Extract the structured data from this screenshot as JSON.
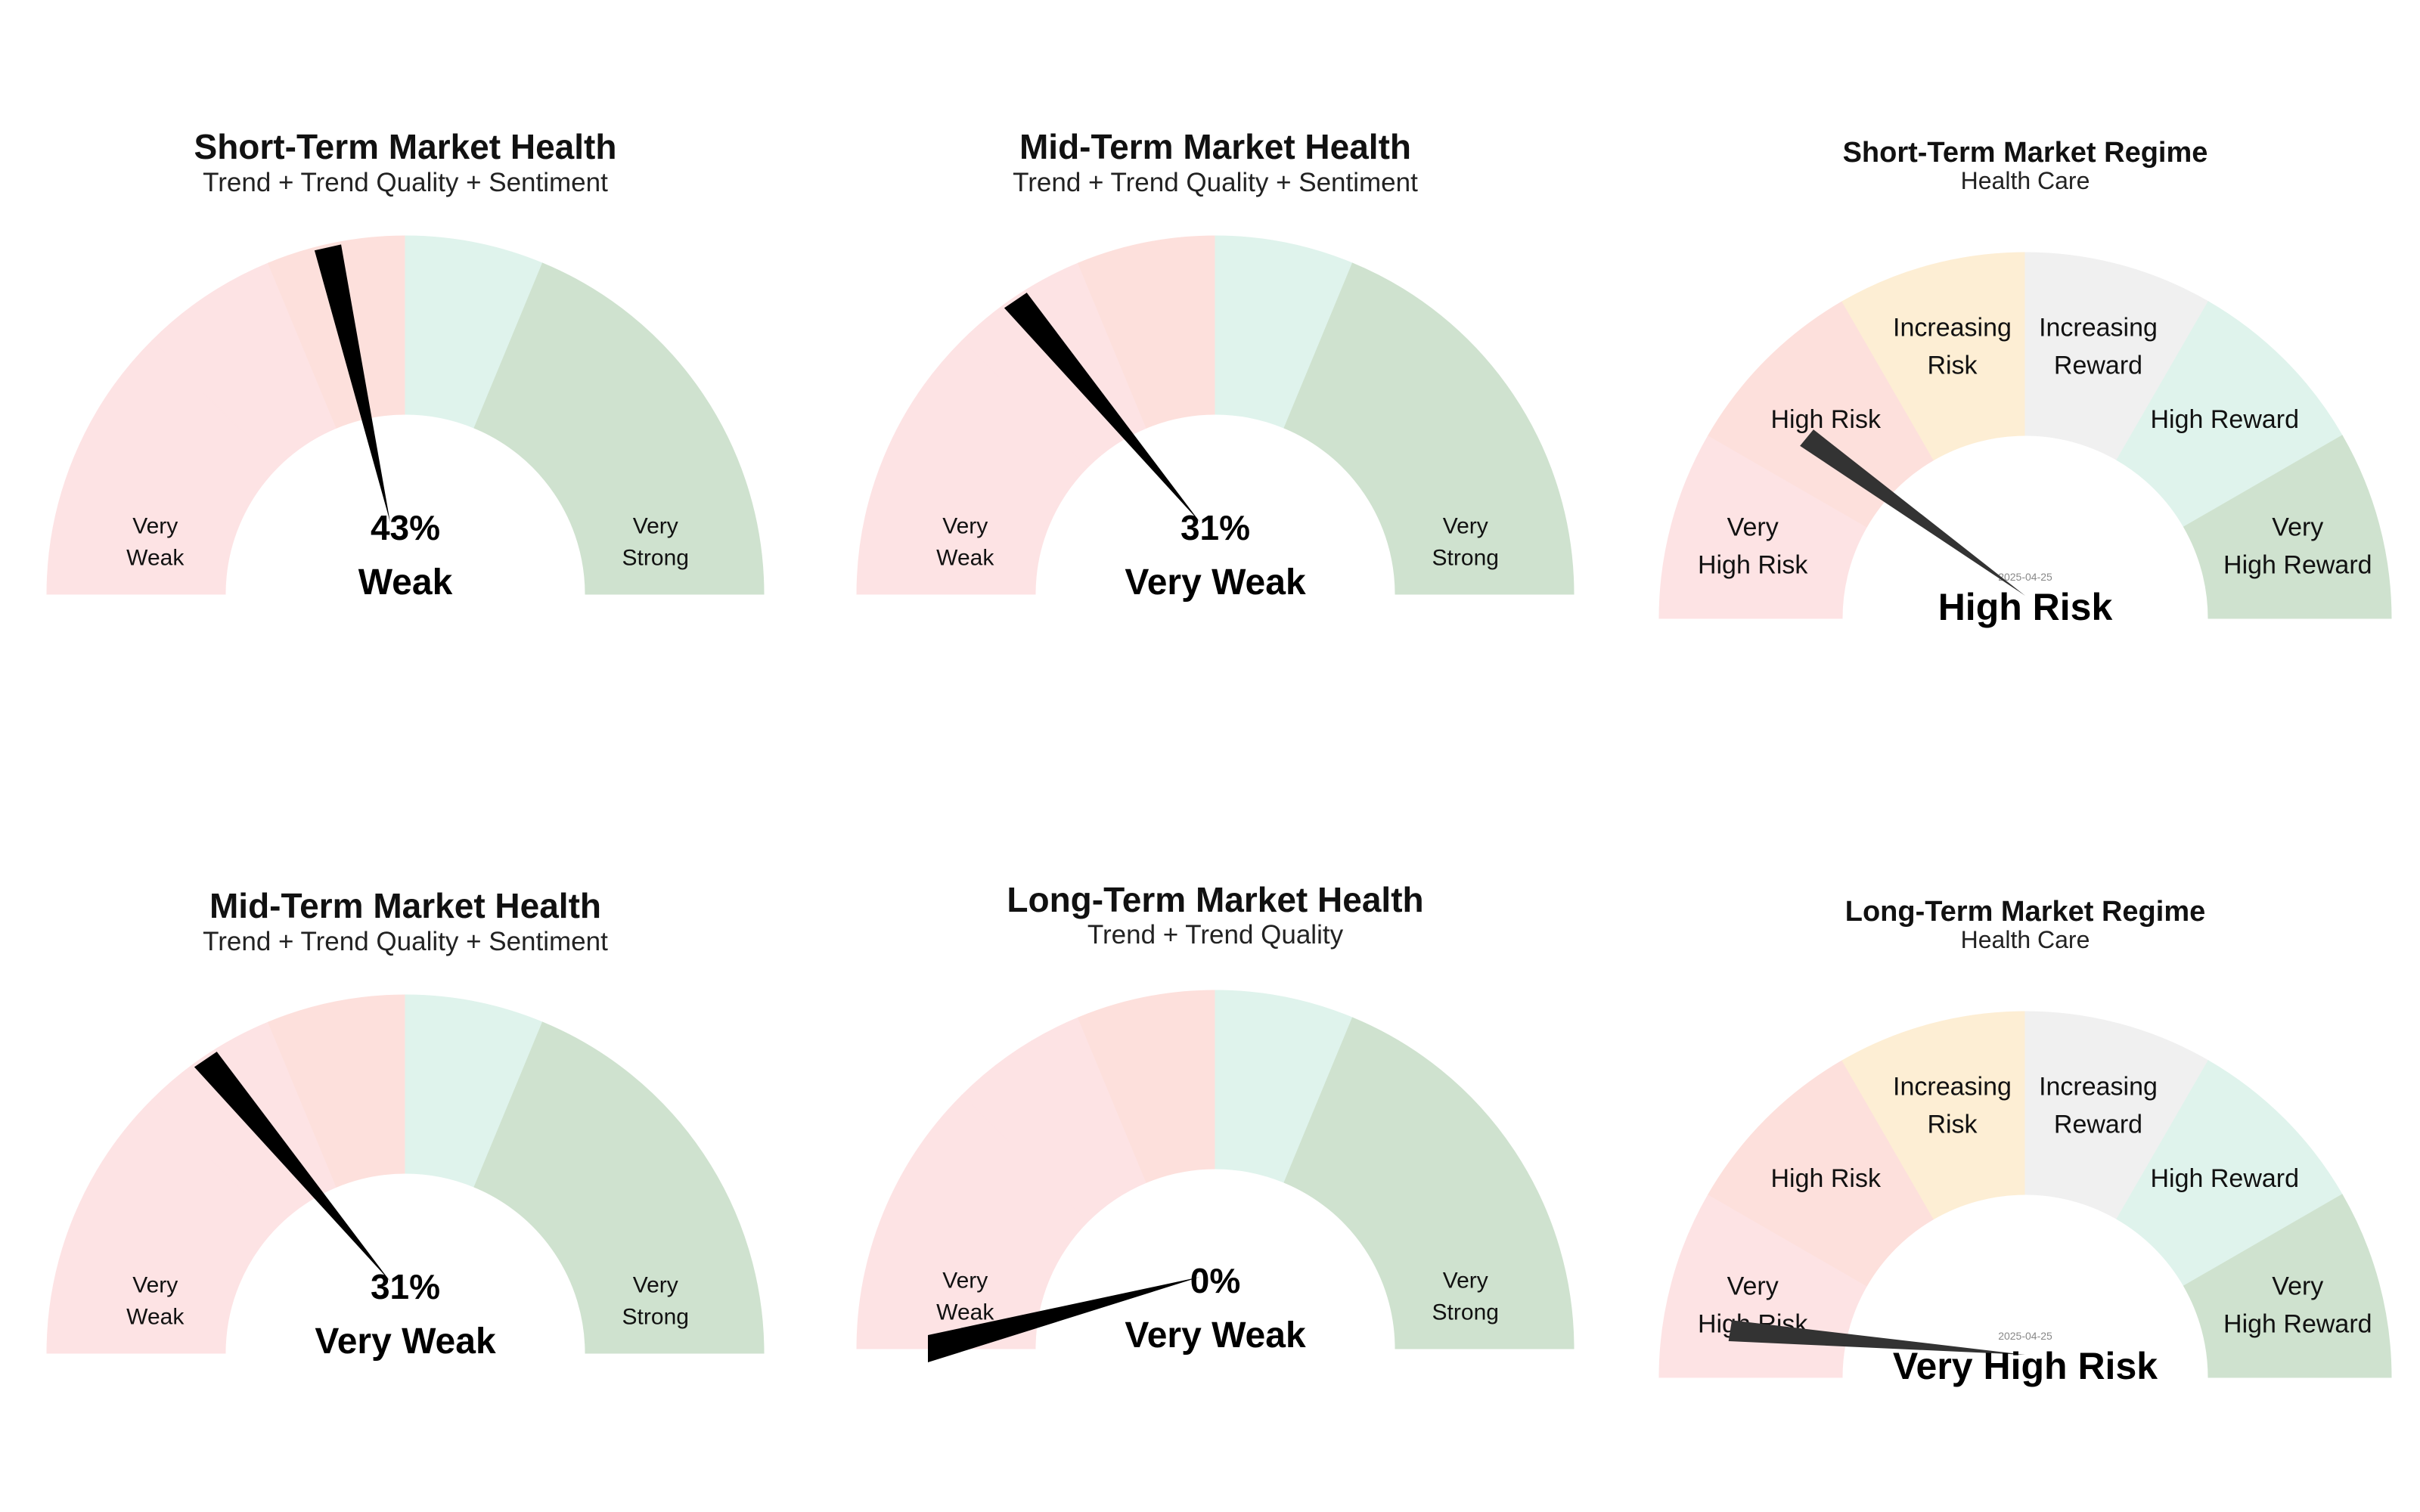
{
  "chart_data": [
    {
      "type": "gauge",
      "kind": "health",
      "title": "Short-Term Market Health",
      "subtitle": "Trend + Trend Quality + Sentiment",
      "value_percent": 43,
      "value_label": "43%",
      "status": "Weak",
      "zones": [
        {
          "from": 0,
          "to": 25,
          "color": "#fde3e4"
        },
        {
          "from": 25,
          "to": 37.5,
          "color": "#fde3e4"
        },
        {
          "from": 37.5,
          "to": 50,
          "color": "#fde0dc"
        },
        {
          "from": 50,
          "to": 62.5,
          "color": "#dff3ec"
        },
        {
          "from": 62.5,
          "to": 100,
          "color": "#cfe2cf"
        }
      ],
      "band_labels": [
        {
          "lines": [
            "Very",
            "Weak"
          ],
          "at": 12.5
        },
        {
          "lines": [
            "Very",
            "Strong"
          ],
          "at": 87.5
        }
      ]
    },
    {
      "type": "gauge",
      "kind": "health",
      "title": "Mid-Term Market Health",
      "subtitle": "Trend + Trend Quality + Sentiment",
      "value_percent": 31,
      "value_label": "31%",
      "status": "Very Weak",
      "zones": [
        {
          "from": 0,
          "to": 25,
          "color": "#fde3e4"
        },
        {
          "from": 25,
          "to": 37.5,
          "color": "#fde3e4"
        },
        {
          "from": 37.5,
          "to": 50,
          "color": "#fde0dc"
        },
        {
          "from": 50,
          "to": 62.5,
          "color": "#dff3ec"
        },
        {
          "from": 62.5,
          "to": 100,
          "color": "#cfe2cf"
        }
      ],
      "band_labels": [
        {
          "lines": [
            "Very",
            "Weak"
          ],
          "at": 12.5
        },
        {
          "lines": [
            "Very",
            "Strong"
          ],
          "at": 87.5
        }
      ]
    },
    {
      "type": "gauge",
      "kind": "regime",
      "title": "Short-Term Market Regime",
      "subtitle": "Health Care",
      "date": "2025-04-25",
      "value_percent": 22,
      "status": "High Risk",
      "zones": [
        {
          "from": 0,
          "to": 16.67,
          "color": "#fde3e4"
        },
        {
          "from": 16.67,
          "to": 33.33,
          "color": "#fde0dc"
        },
        {
          "from": 33.33,
          "to": 50,
          "color": "#fdeed4"
        },
        {
          "from": 50,
          "to": 66.67,
          "color": "#f0f0f0"
        },
        {
          "from": 66.67,
          "to": 83.33,
          "color": "#dff3ec"
        },
        {
          "from": 83.33,
          "to": 100,
          "color": "#cfe2cf"
        }
      ],
      "band_labels": [
        {
          "lines": [
            "Very",
            "High Risk"
          ],
          "at": 8.33
        },
        {
          "lines": [
            "High Risk"
          ],
          "at": 25
        },
        {
          "lines": [
            "Increasing",
            "Risk"
          ],
          "at": 41.67
        },
        {
          "lines": [
            "Increasing",
            "Reward"
          ],
          "at": 58.33
        },
        {
          "lines": [
            "High Reward"
          ],
          "at": 75
        },
        {
          "lines": [
            "Very",
            "High Reward"
          ],
          "at": 91.67
        }
      ]
    },
    {
      "type": "gauge",
      "kind": "health",
      "title": "Mid-Term Market Health",
      "subtitle": "Trend + Trend Quality + Sentiment",
      "value_percent": 31,
      "value_label": "31%",
      "status": "Very Weak",
      "zones": [
        {
          "from": 0,
          "to": 25,
          "color": "#fde3e4"
        },
        {
          "from": 25,
          "to": 37.5,
          "color": "#fde3e4"
        },
        {
          "from": 37.5,
          "to": 50,
          "color": "#fde0dc"
        },
        {
          "from": 50,
          "to": 62.5,
          "color": "#dff3ec"
        },
        {
          "from": 62.5,
          "to": 100,
          "color": "#cfe2cf"
        }
      ],
      "band_labels": [
        {
          "lines": [
            "Very",
            "Weak"
          ],
          "at": 12.5
        },
        {
          "lines": [
            "Very",
            "Strong"
          ],
          "at": 87.5
        }
      ]
    },
    {
      "type": "gauge",
      "kind": "health",
      "title": "Long-Term Market Health",
      "subtitle": "Trend + Trend Quality",
      "value_percent": 0,
      "value_label": "0%",
      "status": "Very Weak",
      "zones": [
        {
          "from": 0,
          "to": 25,
          "color": "#fde3e4"
        },
        {
          "from": 25,
          "to": 37.5,
          "color": "#fde3e4"
        },
        {
          "from": 37.5,
          "to": 50,
          "color": "#fde0dc"
        },
        {
          "from": 50,
          "to": 62.5,
          "color": "#dff3ec"
        },
        {
          "from": 62.5,
          "to": 100,
          "color": "#cfe2cf"
        }
      ],
      "band_labels": [
        {
          "lines": [
            "Very",
            "Weak"
          ],
          "at": 12.5
        },
        {
          "lines": [
            "Very",
            "Strong"
          ],
          "at": 87.5
        }
      ]
    },
    {
      "type": "gauge",
      "kind": "regime",
      "title": "Long-Term Market Regime",
      "subtitle": "Health Care",
      "date": "2025-04-25",
      "value_percent": 5,
      "status": "Very High Risk",
      "zones": [
        {
          "from": 0,
          "to": 16.67,
          "color": "#fde3e4"
        },
        {
          "from": 16.67,
          "to": 33.33,
          "color": "#fde0dc"
        },
        {
          "from": 33.33,
          "to": 50,
          "color": "#fdeed4"
        },
        {
          "from": 50,
          "to": 66.67,
          "color": "#f0f0f0"
        },
        {
          "from": 66.67,
          "to": 83.33,
          "color": "#dff3ec"
        },
        {
          "from": 83.33,
          "to": 100,
          "color": "#cfe2cf"
        }
      ],
      "band_labels": [
        {
          "lines": [
            "Very",
            "High Risk"
          ],
          "at": 8.33
        },
        {
          "lines": [
            "High Risk"
          ],
          "at": 25
        },
        {
          "lines": [
            "Increasing",
            "Risk"
          ],
          "at": 41.67
        },
        {
          "lines": [
            "Increasing",
            "Reward"
          ],
          "at": 58.33
        },
        {
          "lines": [
            "High Reward"
          ],
          "at": 75
        },
        {
          "lines": [
            "Very",
            "High Reward"
          ],
          "at": 91.67
        }
      ]
    }
  ]
}
